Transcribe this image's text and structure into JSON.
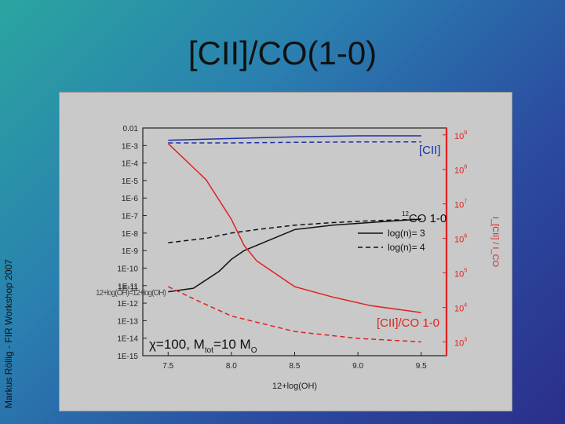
{
  "slide": {
    "title": "[CII]/CO(1-0)",
    "side_credit": "Markus Röllig - FIR Workshop 2007"
  },
  "chart_data": {
    "type": "line",
    "xlabel": "12+log(OH)",
    "xlim": [
      7.3,
      9.7
    ],
    "x_ticks": [
      "7.5",
      "8.0",
      "8.5",
      "9.0",
      "9.5"
    ],
    "left_axis": {
      "ylim_log10": [
        -15,
        -2
      ],
      "tick_labels": [
        "0.01",
        "1E-3",
        "1E-4",
        "1E-5",
        "1E-6",
        "1E-7",
        "1E-8",
        "1E-9",
        "1E-10",
        "1E-11",
        "1E-12",
        "1E-13",
        "1E-14",
        "1E-15"
      ]
    },
    "right_axis": {
      "color": "#e02020",
      "ylim_log10": [
        2.6,
        9.2
      ],
      "tick_bases": [
        "10",
        "10",
        "10",
        "10",
        "10",
        "10",
        "10"
      ],
      "tick_exponents": [
        "9",
        "8",
        "7",
        "6",
        "5",
        "4",
        "3"
      ],
      "tick_values_log10": [
        9,
        8,
        7,
        6,
        5,
        4,
        3
      ],
      "label_text": "I_[CII] / I_CO"
    },
    "series": [
      {
        "name": "[CII]",
        "axis": "left",
        "color": "#1a2fa8",
        "style": "solid",
        "x": [
          7.5,
          8.0,
          8.5,
          9.0,
          9.5
        ],
        "y_log10": [
          -2.7,
          -2.6,
          -2.5,
          -2.45,
          -2.45
        ]
      },
      {
        "name": "[CII]",
        "axis": "left",
        "color": "#1a2fa8",
        "style": "dashed",
        "x": [
          7.5,
          8.0,
          8.5,
          9.0,
          9.5
        ],
        "y_log10": [
          -2.85,
          -2.85,
          -2.82,
          -2.8,
          -2.8
        ]
      },
      {
        "name": "12CO 1-0",
        "axis": "left",
        "color": "#111111",
        "style": "solid",
        "x": [
          7.5,
          7.7,
          7.9,
          8.0,
          8.1,
          8.3,
          8.5,
          8.8,
          9.2,
          9.5
        ],
        "y_log10": [
          -11.35,
          -11.15,
          -10.2,
          -9.5,
          -9.0,
          -8.4,
          -7.8,
          -7.55,
          -7.35,
          -7.2
        ]
      },
      {
        "name": "12CO 1-0",
        "axis": "left",
        "color": "#111111",
        "style": "dashed",
        "x": [
          7.5,
          7.8,
          8.0,
          8.2,
          8.5,
          8.8,
          9.1,
          9.5
        ],
        "y_log10": [
          -8.55,
          -8.3,
          -8.0,
          -7.8,
          -7.55,
          -7.4,
          -7.3,
          -7.2
        ]
      },
      {
        "name": "[CII]/CO 1-0",
        "axis": "right",
        "color": "#e02020",
        "style": "solid",
        "x": [
          7.5,
          7.8,
          8.0,
          8.1,
          8.2,
          8.4,
          8.5,
          8.8,
          9.1,
          9.5
        ],
        "y_log10": [
          8.75,
          7.7,
          6.55,
          5.8,
          5.35,
          4.85,
          4.6,
          4.3,
          4.05,
          3.85
        ]
      },
      {
        "name": "[CII]/CO 1-0",
        "axis": "right",
        "color": "#e02020",
        "style": "dashed",
        "x": [
          7.5,
          7.7,
          8.0,
          8.5,
          9.0,
          9.5
        ],
        "y_log10": [
          4.6,
          4.25,
          3.75,
          3.3,
          3.1,
          3.0
        ]
      }
    ],
    "legend": {
      "placement": "right",
      "entries": [
        {
          "style": "solid",
          "label": "log(n)= 3"
        },
        {
          "style": "dashed",
          "label": "log(n)= 4"
        }
      ]
    },
    "annotations": {
      "cii_label": "[CII]",
      "co_sup": "12",
      "co_label": "CO 1-0",
      "ratio_label": "[CII]/CO 1-0",
      "params": {
        "chi": "χ=100, M",
        "tot_sub": "tot",
        "eq": "=10 M",
        "sun_sub": "O"
      },
      "overlap_text": "12+log(OH)=12+log(OH)",
      "overlap_tick": "1E-11"
    },
    "grid": false
  }
}
